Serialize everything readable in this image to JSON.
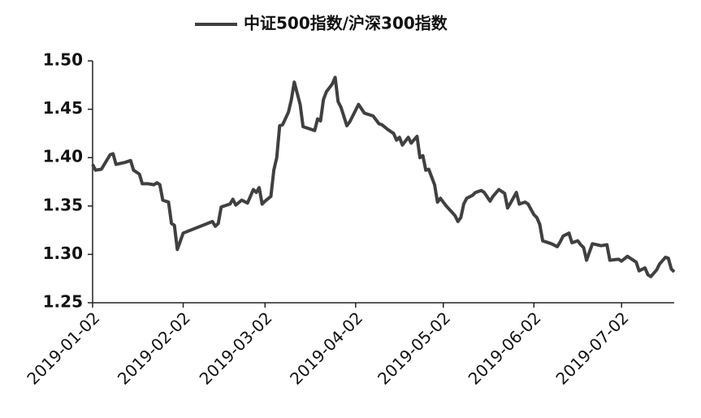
{
  "chart_data": {
    "type": "line",
    "xticks": [
      "2019-01-02",
      "2019-02-02",
      "2019-03-02",
      "2019-04-02",
      "2019-05-02",
      "2019-06-02",
      "2019-07-02"
    ],
    "xlim": [
      "2019-01-02",
      "2019-07-20"
    ],
    "ylim": [
      1.25,
      1.5
    ],
    "yticks": [
      {
        "value": 1.25,
        "label": "1.25"
      },
      {
        "value": 1.3,
        "label": "1.30"
      },
      {
        "value": 1.35,
        "label": "1.35"
      },
      {
        "value": 1.4,
        "label": "1.40"
      },
      {
        "value": 1.45,
        "label": "1.45"
      },
      {
        "value": 1.5,
        "label": "1.50"
      }
    ],
    "grid": false,
    "legend": "top",
    "x": [
      "2019-01-02",
      "2019-01-03",
      "2019-01-05",
      "2019-01-08",
      "2019-01-09",
      "2019-01-10",
      "2019-01-13",
      "2019-01-15",
      "2019-01-16",
      "2019-01-18",
      "2019-01-19",
      "2019-01-21",
      "2019-01-23",
      "2019-01-24",
      "2019-01-25",
      "2019-01-26",
      "2019-01-28",
      "2019-01-29",
      "2019-01-30",
      "2019-01-31",
      "2019-02-02",
      "2019-02-12",
      "2019-02-13",
      "2019-02-14",
      "2019-02-15",
      "2019-02-18",
      "2019-02-19",
      "2019-02-20",
      "2019-02-22",
      "2019-02-24",
      "2019-02-26",
      "2019-02-27",
      "2019-02-28",
      "2019-03-01",
      "2019-03-02",
      "2019-03-04",
      "2019-03-05",
      "2019-03-06",
      "2019-03-07",
      "2019-03-08",
      "2019-03-10",
      "2019-03-11",
      "2019-03-12",
      "2019-03-14",
      "2019-03-15",
      "2019-03-19",
      "2019-03-20",
      "2019-03-21",
      "2019-03-22",
      "2019-03-23",
      "2019-03-25",
      "2019-03-26",
      "2019-03-27",
      "2019-03-28",
      "2019-03-30",
      "2019-03-31",
      "2019-04-03",
      "2019-04-05",
      "2019-04-08",
      "2019-04-10",
      "2019-04-11",
      "2019-04-13",
      "2019-04-15",
      "2019-04-16",
      "2019-04-17",
      "2019-04-18",
      "2019-04-20",
      "2019-04-21",
      "2019-04-23",
      "2019-04-24",
      "2019-04-25",
      "2019-04-26",
      "2019-04-27",
      "2019-04-29",
      "2019-04-30",
      "2019-05-01",
      "2019-05-03",
      "2019-05-06",
      "2019-05-07",
      "2019-05-08",
      "2019-05-09",
      "2019-05-10",
      "2019-05-12",
      "2019-05-13",
      "2019-05-15",
      "2019-05-16",
      "2019-05-18",
      "2019-05-19",
      "2019-05-21",
      "2019-05-23",
      "2019-05-24",
      "2019-05-25",
      "2019-05-27",
      "2019-05-28",
      "2019-05-30",
      "2019-05-31",
      "2019-06-02",
      "2019-06-03",
      "2019-06-04",
      "2019-06-05",
      "2019-06-08",
      "2019-06-10",
      "2019-06-11",
      "2019-06-12",
      "2019-06-14",
      "2019-06-15",
      "2019-06-17",
      "2019-06-18",
      "2019-06-19",
      "2019-06-20",
      "2019-06-22",
      "2019-06-25",
      "2019-06-27",
      "2019-06-28",
      "2019-07-01",
      "2019-07-02",
      "2019-07-04",
      "2019-07-07",
      "2019-07-08",
      "2019-07-10",
      "2019-07-11",
      "2019-07-12",
      "2019-07-14",
      "2019-07-15",
      "2019-07-17",
      "2019-07-18",
      "2019-07-19",
      "2019-07-20"
    ],
    "series": [
      {
        "name": "中证500指数/沪深300指数",
        "color": "#404040",
        "values": [
          1.393,
          1.387,
          1.388,
          1.403,
          1.404,
          1.393,
          1.395,
          1.397,
          1.387,
          1.383,
          1.373,
          1.373,
          1.372,
          1.374,
          1.372,
          1.356,
          1.354,
          1.332,
          1.33,
          1.305,
          1.322,
          1.334,
          1.329,
          1.332,
          1.349,
          1.352,
          1.357,
          1.351,
          1.356,
          1.353,
          1.367,
          1.364,
          1.369,
          1.352,
          1.355,
          1.36,
          1.387,
          1.4,
          1.433,
          1.434,
          1.447,
          1.46,
          1.478,
          1.455,
          1.432,
          1.428,
          1.44,
          1.438,
          1.46,
          1.468,
          1.476,
          1.483,
          1.458,
          1.452,
          1.433,
          1.437,
          1.455,
          1.446,
          1.443,
          1.435,
          1.434,
          1.429,
          1.425,
          1.418,
          1.421,
          1.413,
          1.421,
          1.415,
          1.422,
          1.4,
          1.402,
          1.387,
          1.388,
          1.372,
          1.354,
          1.358,
          1.35,
          1.34,
          1.334,
          1.338,
          1.352,
          1.358,
          1.361,
          1.364,
          1.366,
          1.364,
          1.355,
          1.36,
          1.367,
          1.363,
          1.348,
          1.353,
          1.364,
          1.352,
          1.354,
          1.352,
          1.341,
          1.338,
          1.331,
          1.314,
          1.311,
          1.308,
          1.313,
          1.319,
          1.322,
          1.312,
          1.314,
          1.31,
          1.307,
          1.294,
          1.311,
          1.309,
          1.31,
          1.294,
          1.295,
          1.293,
          1.298,
          1.292,
          1.283,
          1.286,
          1.279,
          1.277,
          1.284,
          1.29,
          1.297,
          1.296,
          1.285,
          1.282
        ]
      }
    ]
  }
}
